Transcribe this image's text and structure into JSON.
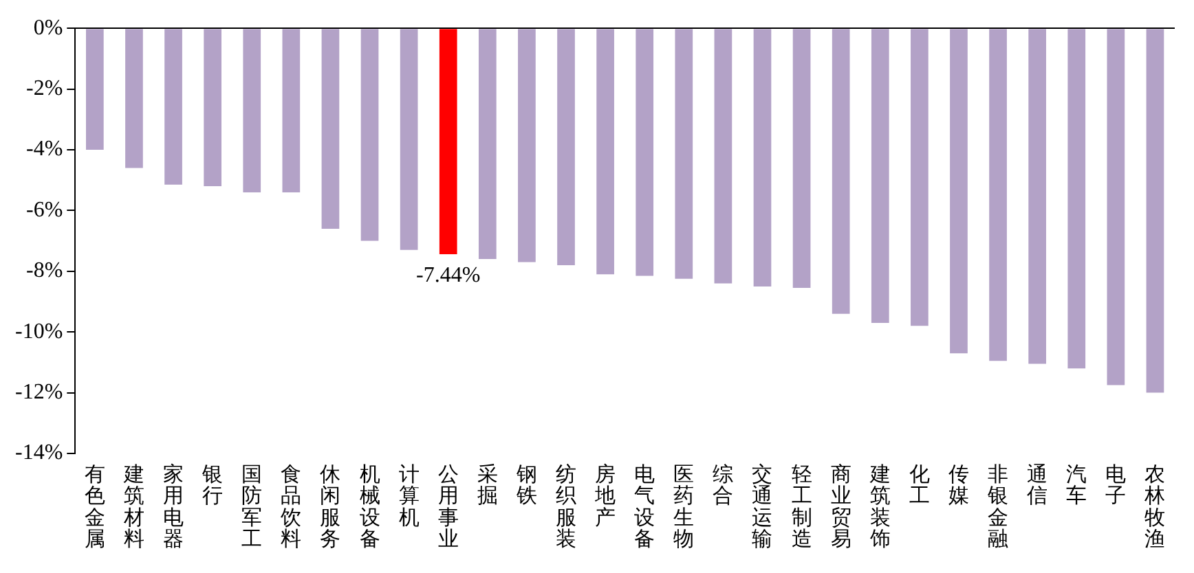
{
  "chart_data": {
    "type": "bar",
    "categories": [
      "有色金属",
      "建筑材料",
      "家用电器",
      "银行",
      "国防军工",
      "食品饮料",
      "休闲服务",
      "机械设备",
      "计算机",
      "公用事业",
      "采掘",
      "钢铁",
      "纺织服装",
      "房地产",
      "电气设备",
      "医药生物",
      "综合",
      "交通运输",
      "轻工制造",
      "商业贸易",
      "建筑装饰",
      "化工",
      "传媒",
      "非银金融",
      "通信",
      "汽车",
      "电子",
      "农林牧渔"
    ],
    "values": [
      -4.0,
      -4.6,
      -5.15,
      -5.2,
      -5.4,
      -5.4,
      -6.6,
      -7.0,
      -7.3,
      -7.44,
      -7.6,
      -7.7,
      -7.8,
      -8.1,
      -8.15,
      -8.25,
      -8.4,
      -8.5,
      -8.55,
      -9.4,
      -9.7,
      -9.8,
      -10.7,
      -10.95,
      -11.05,
      -11.2,
      -11.75,
      -12.0
    ],
    "colors": [
      "#b3a2c7",
      "#b3a2c7",
      "#b3a2c7",
      "#b3a2c7",
      "#b3a2c7",
      "#b3a2c7",
      "#b3a2c7",
      "#b3a2c7",
      "#b3a2c7",
      "#ff0000",
      "#b3a2c7",
      "#b3a2c7",
      "#b3a2c7",
      "#b3a2c7",
      "#b3a2c7",
      "#b3a2c7",
      "#b3a2c7",
      "#b3a2c7",
      "#b3a2c7",
      "#b3a2c7",
      "#b3a2c7",
      "#b3a2c7",
      "#b3a2c7",
      "#b3a2c7",
      "#b3a2c7",
      "#b3a2c7",
      "#b3a2c7",
      "#b3a2c7"
    ],
    "value_labels": [
      null,
      null,
      null,
      null,
      null,
      null,
      null,
      null,
      null,
      "-7.44%",
      null,
      null,
      null,
      null,
      null,
      null,
      null,
      null,
      null,
      null,
      null,
      null,
      null,
      null,
      null,
      null,
      null,
      null
    ],
    "ylim": [
      -14,
      0
    ],
    "yticks": [
      {
        "value": 0,
        "label": "0%"
      },
      {
        "value": -2,
        "label": "-2%"
      },
      {
        "value": -4,
        "label": "-4%"
      },
      {
        "value": -6,
        "label": "-6%"
      },
      {
        "value": -8,
        "label": "-8%"
      },
      {
        "value": -10,
        "label": "-10%"
      },
      {
        "value": -12,
        "label": "-12%"
      },
      {
        "value": -14,
        "label": "-14%"
      }
    ],
    "grid": false,
    "legend": false
  }
}
